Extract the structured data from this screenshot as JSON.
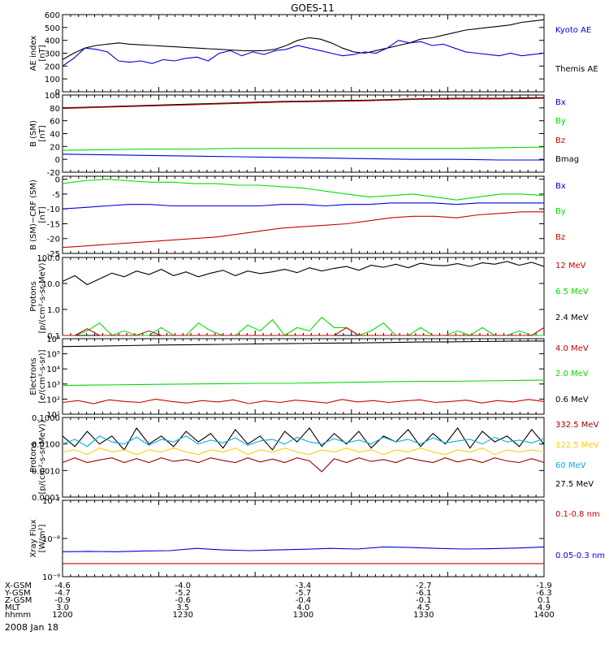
{
  "title": "GOES-11",
  "date_label": "2008 Jan 18",
  "colors": {
    "black": "#000000",
    "blue": "#0000dd",
    "green": "#00dd00",
    "red": "#cc0000",
    "darkred": "#a00000",
    "cyan": "#00aaee",
    "yellow": "#ffcc00"
  },
  "chart_data": [
    {
      "type": "line",
      "ylabel": [
        "AE index",
        "[nT]"
      ],
      "ylim": [
        0,
        600
      ],
      "yticks": [
        "0",
        "100",
        "200",
        "300",
        "400",
        "500",
        "600"
      ],
      "yticks_values": [
        0,
        100,
        200,
        300,
        400,
        500,
        600
      ],
      "legend": [
        {
          "name": "Kyoto AE",
          "color": "#0000dd"
        },
        {
          "name": "Themis AE",
          "color": "#000000"
        }
      ],
      "series": [
        {
          "name": "Themis AE",
          "color": "#000000",
          "y": [
            250,
            300,
            340,
            360,
            370,
            380,
            370,
            365,
            360,
            355,
            350,
            345,
            340,
            335,
            330,
            325,
            320,
            318,
            320,
            330,
            360,
            400,
            420,
            410,
            380,
            340,
            310,
            300,
            320,
            340,
            360,
            380,
            410,
            420,
            440,
            460,
            480,
            490,
            500,
            510,
            520,
            540,
            550,
            560
          ]
        },
        {
          "name": "Kyoto AE",
          "color": "#0000dd",
          "y": [
            200,
            260,
            340,
            330,
            310,
            240,
            230,
            240,
            220,
            250,
            240,
            260,
            270,
            240,
            300,
            320,
            280,
            310,
            290,
            320,
            330,
            360,
            340,
            320,
            300,
            280,
            290,
            310,
            300,
            340,
            400,
            380,
            390,
            360,
            370,
            340,
            310,
            300,
            290,
            280,
            300,
            280,
            290,
            300
          ]
        }
      ]
    },
    {
      "type": "line",
      "ylabel": [
        "B (SM)",
        "[nT]"
      ],
      "ylim": [
        -20,
        100
      ],
      "yticks": [
        "-20",
        "0",
        "20",
        "40",
        "60",
        "80",
        "100"
      ],
      "yticks_values": [
        -20,
        0,
        20,
        40,
        60,
        80,
        100
      ],
      "legend": [
        {
          "name": "Bx",
          "color": "#0000dd"
        },
        {
          "name": "By",
          "color": "#00dd00"
        },
        {
          "name": "Bz",
          "color": "#cc0000"
        },
        {
          "name": "Bmag",
          "color": "#000000"
        }
      ],
      "series": [
        {
          "name": "Bmag",
          "color": "#000000",
          "y": [
            80,
            82,
            84,
            86,
            88,
            90,
            91,
            92,
            94,
            95,
            95,
            96
          ]
        },
        {
          "name": "Bz",
          "color": "#cc0000",
          "y": [
            79,
            81,
            83,
            85,
            87,
            89,
            90,
            91,
            93,
            94,
            94,
            95
          ]
        },
        {
          "name": "By",
          "color": "#00dd00",
          "y": [
            14,
            15,
            16,
            16,
            17,
            17,
            17,
            17,
            17,
            17,
            18,
            19
          ]
        },
        {
          "name": "Bx",
          "color": "#0000dd",
          "y": [
            8,
            7,
            6,
            5,
            4,
            3,
            2,
            1,
            0,
            0,
            -1,
            -1
          ]
        }
      ]
    },
    {
      "type": "line",
      "ylabel": [
        "B (SM)−CRF (SM)",
        "[nT]"
      ],
      "ylim": [
        -25,
        1
      ],
      "yticks": [
        "-25",
        "-20",
        "-15",
        "-10",
        "-5",
        "0"
      ],
      "yticks_values": [
        -25,
        -20,
        -15,
        -10,
        -5,
        0
      ],
      "legend": [
        {
          "name": "Bx",
          "color": "#0000dd"
        },
        {
          "name": "By",
          "color": "#00dd00"
        },
        {
          "name": "Bz",
          "color": "#cc0000"
        }
      ],
      "series": [
        {
          "name": "By",
          "color": "#00dd00",
          "y": [
            -1.5,
            -0.5,
            0,
            -0.5,
            -1,
            -1,
            -1.5,
            -1.5,
            -2,
            -2,
            -2.5,
            -3,
            -4,
            -5,
            -6,
            -5.5,
            -5,
            -6,
            -7,
            -6,
            -5,
            -5,
            -5.5
          ]
        },
        {
          "name": "Bx",
          "color": "#0000dd",
          "y": [
            -10,
            -9.5,
            -9,
            -8.5,
            -8.5,
            -9,
            -9,
            -9,
            -9,
            -9,
            -8.5,
            -8.5,
            -9,
            -8.5,
            -8.5,
            -8,
            -8,
            -8,
            -8.5,
            -8,
            -8,
            -8,
            -8
          ]
        },
        {
          "name": "Bz",
          "color": "#cc0000",
          "y": [
            -23,
            -22.5,
            -22,
            -21.5,
            -21,
            -20.5,
            -20,
            -19.5,
            -18.5,
            -17.5,
            -16.5,
            -16,
            -15.5,
            -15,
            -14,
            -13,
            -12.5,
            -12.5,
            -13,
            -12,
            -11.5,
            -11,
            -11
          ]
        }
      ]
    },
    {
      "type": "line",
      "scale": "log",
      "ylabel": [
        "Protons",
        "[p/(cm²-s-sr-MeV)]"
      ],
      "ylim": [
        0.1,
        100
      ],
      "yticks": [
        "0.1",
        "1.0",
        "10.0",
        "100.0"
      ],
      "yticks_values": [
        0.1,
        1,
        10,
        100
      ],
      "legend": [
        {
          "name": "12 MeV",
          "color": "#cc0000"
        },
        {
          "name": "6.5 MeV",
          "color": "#00dd00"
        },
        {
          "name": "2.4 MeV",
          "color": "#000000"
        }
      ],
      "series": [
        {
          "name": "2.4 MeV",
          "color": "#000000",
          "y": [
            12,
            20,
            9,
            15,
            25,
            18,
            30,
            22,
            35,
            20,
            28,
            18,
            25,
            32,
            20,
            30,
            24,
            28,
            35,
            26,
            40,
            30,
            38,
            45,
            32,
            50,
            42,
            55,
            40,
            60,
            50,
            48,
            58,
            45,
            62,
            55,
            70,
            50,
            65,
            45
          ]
        },
        {
          "name": "6.5 MeV",
          "color": "#00dd00",
          "y": [
            0.1,
            0.1,
            0.15,
            0.3,
            0.1,
            0.15,
            0.1,
            0.1,
            0.2,
            0.1,
            0.1,
            0.3,
            0.15,
            0.1,
            0.1,
            0.25,
            0.15,
            0.4,
            0.1,
            0.2,
            0.15,
            0.5,
            0.2,
            0.2,
            0.1,
            0.15,
            0.3,
            0.1,
            0.1,
            0.2,
            0.1,
            0.1,
            0.15,
            0.1,
            0.2,
            0.1,
            0.1,
            0.15,
            0.1,
            0.1
          ]
        },
        {
          "name": "12 MeV",
          "color": "#cc0000",
          "y": [
            0.1,
            0.1,
            0.18,
            0.1,
            0.1,
            0.1,
            0.1,
            0.15,
            0.1,
            0.1,
            0.1,
            0.1,
            0.1,
            0.1,
            0.1,
            0.1,
            0.1,
            0.1,
            0.1,
            0.1,
            0.1,
            0.1,
            0.1,
            0.2,
            0.1,
            0.1,
            0.1,
            0.1,
            0.1,
            0.1,
            0.1,
            0.1,
            0.1,
            0.1,
            0.1,
            0.1,
            0.1,
            0.1,
            0.1,
            0.2
          ]
        }
      ]
    },
    {
      "type": "line",
      "scale": "log",
      "ylabel": [
        "Electrons",
        "[e/(cm²-s-sr)]"
      ],
      "ylim": [
        10,
        1000000
      ],
      "yticks": [
        "10¹",
        "10²",
        "10³",
        "10⁴",
        "10⁵",
        "10⁶"
      ],
      "yticks_values": [
        10,
        100,
        1000,
        10000,
        100000,
        1000000
      ],
      "legend": [
        {
          "name": "4.0 MeV",
          "color": "#cc0000"
        },
        {
          "name": "2.0 MeV",
          "color": "#00dd00"
        },
        {
          "name": "0.6 MeV",
          "color": "#000000"
        }
      ],
      "series": [
        {
          "name": "0.6 MeV",
          "color": "#000000",
          "y": [
            300000,
            320000,
            350000,
            380000,
            400000,
            420000,
            450000,
            470000,
            500000,
            520000,
            550000,
            600000,
            620000,
            650000,
            680000,
            700000
          ]
        },
        {
          "name": "2.0 MeV",
          "color": "#00dd00",
          "y": [
            800,
            850,
            900,
            950,
            1000,
            1050,
            1100,
            1100,
            1200,
            1300,
            1400,
            1500,
            1500,
            1600,
            1700,
            1800
          ]
        },
        {
          "name": "4.0 MeV",
          "color": "#cc0000",
          "y": [
            60,
            80,
            50,
            90,
            70,
            60,
            100,
            70,
            55,
            80,
            65,
            90,
            50,
            75,
            60,
            85,
            70,
            55,
            95,
            65,
            80,
            60,
            75,
            90,
            60,
            70,
            85,
            55,
            80,
            65,
            95,
            70
          ]
        }
      ]
    },
    {
      "type": "line",
      "scale": "log",
      "ylabel": [
        "Protons",
        "[p/(cm²-s-sr-MeV)]"
      ],
      "ylim": [
        0.0001,
        0.1
      ],
      "yticks": [
        "0.0001",
        "0.0010",
        "0.0100",
        "0.1000"
      ],
      "yticks_values": [
        0.0001,
        0.001,
        0.01,
        0.1
      ],
      "legend": [
        {
          "name": "332.5 MeV",
          "color": "#a00000"
        },
        {
          "name": "122.5 MeV",
          "color": "#ffcc00"
        },
        {
          "name": "60 MeV",
          "color": "#00aaee"
        },
        {
          "name": "27.5 MeV",
          "color": "#000000"
        }
      ],
      "series": [
        {
          "name": "27.5 MeV",
          "color": "#000000",
          "y": [
            0.02,
            0.008,
            0.03,
            0.01,
            0.02,
            0.006,
            0.04,
            0.01,
            0.02,
            0.008,
            0.03,
            0.012,
            0.025,
            0.007,
            0.035,
            0.01,
            0.02,
            0.006,
            0.03,
            0.012,
            0.04,
            0.008,
            0.025,
            0.01,
            0.03,
            0.007,
            0.02,
            0.012,
            0.035,
            0.008,
            0.025,
            0.01,
            0.04,
            0.007,
            0.03,
            0.012,
            0.02,
            0.008,
            0.035,
            0.01
          ]
        },
        {
          "name": "60 MeV",
          "color": "#00aaee",
          "y": [
            0.01,
            0.015,
            0.008,
            0.02,
            0.012,
            0.01,
            0.018,
            0.009,
            0.015,
            0.012,
            0.02,
            0.01,
            0.014,
            0.011,
            0.017,
            0.009,
            0.013,
            0.015,
            0.01,
            0.018,
            0.012,
            0.01,
            0.016,
            0.011,
            0.014,
            0.01,
            0.018,
            0.012,
            0.015,
            0.01,
            0.017,
            0.011,
            0.013,
            0.015,
            0.01,
            0.018,
            0.012,
            0.014,
            0.011,
            0.016
          ]
        },
        {
          "name": "122.5 MeV",
          "color": "#ffcc00",
          "y": [
            0.005,
            0.006,
            0.004,
            0.007,
            0.005,
            0.006,
            0.004,
            0.006,
            0.005,
            0.007,
            0.005,
            0.004,
            0.006,
            0.005,
            0.007,
            0.004,
            0.006,
            0.005,
            0.007,
            0.005,
            0.004,
            0.006,
            0.005,
            0.007,
            0.005,
            0.006,
            0.004,
            0.006,
            0.005,
            0.007,
            0.005,
            0.004,
            0.006,
            0.005,
            0.007,
            0.004,
            0.006,
            0.005,
            0.006,
            0.005
          ]
        },
        {
          "name": "332.5 MeV",
          "color": "#a00000",
          "y": [
            0.002,
            0.003,
            0.002,
            0.0025,
            0.003,
            0.002,
            0.0028,
            0.002,
            0.003,
            0.0022,
            0.0026,
            0.002,
            0.003,
            0.0024,
            0.002,
            0.003,
            0.0021,
            0.0027,
            0.002,
            0.003,
            0.0023,
            0.0009,
            0.0028,
            0.002,
            0.003,
            0.0022,
            0.0026,
            0.002,
            0.003,
            0.0024,
            0.002,
            0.003,
            0.0021,
            0.0027,
            0.002,
            0.003,
            0.0023,
            0.002,
            0.0028,
            0.002
          ]
        }
      ]
    },
    {
      "type": "line",
      "scale": "log",
      "ylabel": [
        "Xray Flux",
        "[W/m²]"
      ],
      "ylim": [
        1e-09,
        1e-07
      ],
      "yticks": [
        "10⁻⁹",
        "10⁻⁸",
        "10⁻⁷"
      ],
      "yticks_values": [
        1e-09,
        1e-08,
        1e-07
      ],
      "legend": [
        {
          "name": "0.1-0.8 nm",
          "color": "#cc0000"
        },
        {
          "name": "0.05-0.3 nm",
          "color": "#0000dd"
        }
      ],
      "series": [
        {
          "name": "0.05-0.3 nm",
          "color": "#0000dd",
          "y": [
            4.5e-09,
            4.6e-09,
            4.5e-09,
            4.7e-09,
            4.8e-09,
            5.5e-09,
            5e-09,
            4.8e-09,
            5e-09,
            5.2e-09,
            5.5e-09,
            5.3e-09,
            6e-09,
            5.8e-09,
            5.5e-09,
            5.3e-09,
            5.4e-09,
            5.6e-09,
            6e-09
          ]
        },
        {
          "name": "0.1-0.8 nm",
          "color": "#cc0000",
          "y": [
            2.2e-09,
            2.2e-09
          ]
        }
      ]
    }
  ],
  "x_axis": {
    "rows": [
      {
        "label": "X-GSM",
        "values": [
          "-4.6",
          "-4.0",
          "-3.4",
          "-2.7",
          "-1.9"
        ]
      },
      {
        "label": "Y-GSM",
        "values": [
          "-4.7",
          "-5.2",
          "-5.7",
          "-6.1",
          "-6.3"
        ]
      },
      {
        "label": "Z-GSM",
        "values": [
          "-0.9",
          "-0.6",
          "-0.4",
          "-0.1",
          "0.1"
        ]
      },
      {
        "label": "MLT",
        "values": [
          "3.0",
          "3.5",
          "4.0",
          "4.5",
          "4.9"
        ]
      },
      {
        "label": "hhmm",
        "values": [
          "1200",
          "1230",
          "1300",
          "1330",
          "1400"
        ]
      }
    ]
  }
}
